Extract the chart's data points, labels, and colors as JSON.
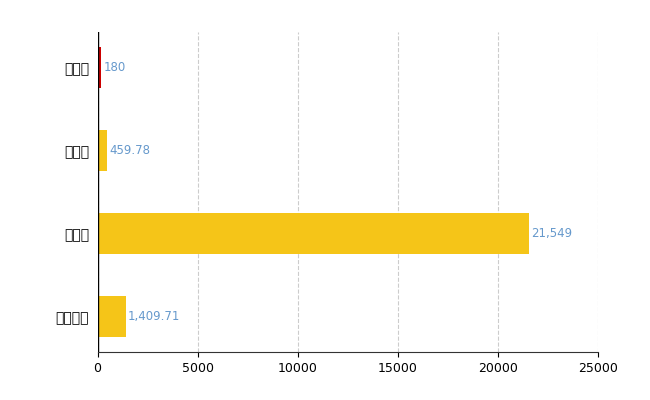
{
  "categories": [
    "全国平均",
    "県最大",
    "県平均",
    "栗山町"
  ],
  "values": [
    1409.71,
    21549,
    459.78,
    180
  ],
  "bar_colors": [
    "#F5C518",
    "#F5C518",
    "#F5C518",
    "#CC0000"
  ],
  "labels": [
    "1,409.71",
    "21,549",
    "459.78",
    "180"
  ],
  "xlim": [
    0,
    25000
  ],
  "xticks": [
    0,
    5000,
    10000,
    15000,
    20000,
    25000
  ],
  "xtick_labels": [
    "0",
    "5000",
    "10000",
    "15000",
    "20000",
    "25000"
  ],
  "background_color": "#ffffff",
  "grid_color": "#cccccc",
  "label_color": "#6699cc",
  "bar_height": 0.5
}
